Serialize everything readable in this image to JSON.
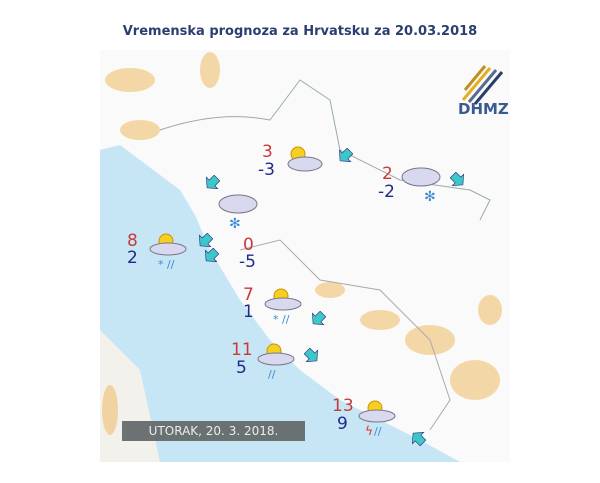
{
  "title": "Vremenska prognoza za Hrvatsku za 20.03.2018",
  "logo": "DHMZ",
  "date_label": "UTORAK, 20. 3. 2018.",
  "colors": {
    "max_temp": "#c83a3a",
    "min_temp": "#1f2a8a",
    "sea": "#c6e6f6",
    "arrow": "#3cc8c8"
  },
  "stations": [
    {
      "max": "3",
      "min": "-3",
      "icon": "partly-cloudy-icon"
    },
    {
      "max": "2",
      "min": "-2",
      "icon": "cloudy-snow-icon"
    },
    {
      "icon": "cloudy-snow-icon"
    },
    {
      "max": "8",
      "min": "2",
      "icon": "partly-cloudy-sleet-icon"
    },
    {
      "max": "0",
      "min": "-5"
    },
    {
      "max": "7",
      "min": "1",
      "icon": "partly-cloudy-sleet-icon"
    },
    {
      "max": "11",
      "min": "5",
      "icon": "partly-cloudy-rain-icon"
    },
    {
      "max": "13",
      "min": "9",
      "icon": "partly-cloudy-thunderstorm-icon"
    }
  ],
  "wind_arrows": [
    "southwest",
    "southeast",
    "southwest",
    "southwest",
    "southwest",
    "southwest",
    "southeast",
    "northwest"
  ]
}
